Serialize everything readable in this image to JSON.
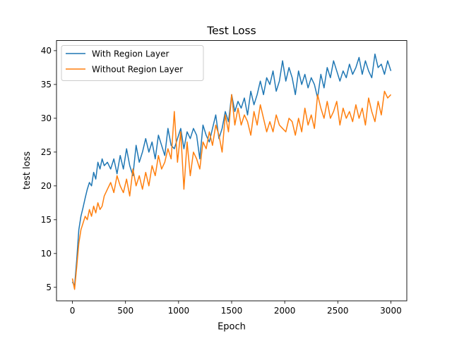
{
  "chart_data": {
    "type": "line",
    "title": "Test Loss",
    "xlabel": "Epoch",
    "ylabel": "test loss",
    "xlim": [
      -150,
      3150
    ],
    "ylim": [
      3,
      41.5
    ],
    "xticks": [
      0,
      500,
      1000,
      1500,
      2000,
      2500,
      3000
    ],
    "yticks": [
      5,
      10,
      15,
      20,
      25,
      30,
      35,
      40
    ],
    "grid": false,
    "legend_position": "top-left",
    "series": [
      {
        "name": "With Region Layer",
        "color": "#1f77b4",
        "x": [
          0,
          20,
          40,
          60,
          80,
          100,
          120,
          140,
          160,
          180,
          200,
          220,
          240,
          260,
          280,
          300,
          330,
          360,
          390,
          420,
          450,
          480,
          510,
          540,
          570,
          600,
          630,
          660,
          690,
          720,
          750,
          780,
          810,
          840,
          870,
          900,
          930,
          960,
          990,
          1020,
          1050,
          1080,
          1110,
          1140,
          1170,
          1200,
          1230,
          1260,
          1290,
          1320,
          1350,
          1380,
          1410,
          1440,
          1470,
          1500,
          1530,
          1560,
          1590,
          1620,
          1650,
          1680,
          1710,
          1740,
          1770,
          1800,
          1830,
          1860,
          1890,
          1920,
          1950,
          1980,
          2010,
          2040,
          2070,
          2100,
          2130,
          2160,
          2190,
          2220,
          2250,
          2280,
          2310,
          2340,
          2370,
          2400,
          2430,
          2460,
          2490,
          2520,
          2550,
          2580,
          2610,
          2640,
          2670,
          2700,
          2730,
          2760,
          2790,
          2820,
          2850,
          2880,
          2910,
          2940,
          2970,
          3000
        ],
        "values": [
          5.8,
          5.2,
          9.0,
          13.5,
          15.5,
          16.8,
          18.2,
          19.5,
          20.5,
          20.0,
          22.0,
          21.0,
          23.5,
          22.5,
          24.0,
          23.0,
          23.5,
          22.5,
          24.0,
          21.8,
          24.5,
          22.5,
          25.5,
          23.0,
          21.5,
          26.0,
          23.5,
          25.0,
          27.0,
          25.0,
          26.5,
          24.0,
          27.5,
          26.0,
          24.5,
          28.5,
          26.0,
          25.5,
          27.0,
          28.5,
          25.5,
          28.0,
          27.0,
          28.5,
          27.5,
          24.0,
          29.0,
          27.5,
          26.5,
          28.5,
          30.5,
          27.0,
          28.5,
          31.0,
          29.5,
          33.5,
          31.0,
          32.5,
          31.5,
          33.0,
          30.5,
          34.0,
          32.0,
          33.5,
          35.5,
          33.5,
          36.0,
          35.0,
          37.0,
          34.0,
          35.5,
          38.5,
          35.5,
          37.5,
          36.0,
          33.5,
          37.0,
          35.0,
          36.5,
          34.5,
          36.0,
          35.0,
          33.0,
          36.5,
          34.5,
          37.5,
          36.0,
          38.5,
          37.0,
          35.5,
          37.0,
          36.0,
          38.0,
          36.5,
          37.5,
          39.0,
          36.5,
          38.5,
          37.0,
          36.0,
          39.5,
          37.5,
          38.0,
          36.5,
          38.5,
          37.0
        ]
      },
      {
        "name": "Without Region Layer",
        "color": "#ff7f0e",
        "x": [
          0,
          20,
          40,
          60,
          80,
          100,
          120,
          140,
          160,
          180,
          200,
          220,
          240,
          260,
          280,
          300,
          330,
          360,
          390,
          420,
          450,
          480,
          510,
          540,
          570,
          600,
          630,
          660,
          690,
          720,
          750,
          780,
          810,
          840,
          870,
          900,
          930,
          960,
          990,
          1020,
          1050,
          1080,
          1110,
          1140,
          1170,
          1200,
          1230,
          1260,
          1290,
          1320,
          1350,
          1380,
          1410,
          1440,
          1470,
          1500,
          1530,
          1560,
          1590,
          1620,
          1650,
          1680,
          1710,
          1740,
          1770,
          1800,
          1830,
          1860,
          1890,
          1920,
          1950,
          1980,
          2010,
          2040,
          2070,
          2100,
          2130,
          2160,
          2190,
          2220,
          2250,
          2280,
          2310,
          2340,
          2370,
          2400,
          2430,
          2460,
          2490,
          2520,
          2550,
          2580,
          2610,
          2640,
          2670,
          2700,
          2730,
          2760,
          2790,
          2820,
          2850,
          2880,
          2910,
          2940,
          2970,
          3000
        ],
        "values": [
          6.3,
          4.7,
          8.0,
          11.5,
          13.5,
          14.5,
          15.5,
          15.0,
          16.5,
          15.5,
          17.0,
          16.0,
          17.5,
          16.5,
          17.0,
          18.5,
          19.5,
          20.5,
          19.0,
          21.5,
          20.0,
          19.0,
          21.0,
          18.5,
          22.5,
          20.0,
          21.5,
          19.5,
          22.0,
          20.0,
          23.0,
          21.5,
          24.5,
          22.5,
          23.5,
          25.5,
          24.0,
          31.0,
          23.5,
          28.0,
          19.5,
          26.5,
          21.5,
          25.0,
          24.0,
          22.5,
          26.5,
          25.5,
          28.0,
          26.0,
          29.0,
          27.5,
          25.0,
          30.5,
          28.0,
          33.5,
          29.0,
          31.5,
          29.0,
          30.5,
          29.5,
          27.5,
          31.0,
          29.0,
          32.0,
          30.0,
          28.0,
          29.5,
          28.0,
          30.5,
          29.0,
          28.5,
          28.0,
          30.0,
          29.5,
          27.5,
          30.0,
          28.0,
          31.5,
          29.0,
          30.5,
          28.5,
          33.5,
          31.5,
          30.0,
          32.5,
          30.0,
          31.0,
          32.5,
          29.0,
          31.5,
          30.0,
          31.0,
          29.5,
          32.0,
          30.0,
          31.5,
          29.0,
          33.0,
          31.0,
          29.5,
          32.5,
          30.5,
          34.0,
          33.0,
          33.5
        ]
      }
    ]
  }
}
